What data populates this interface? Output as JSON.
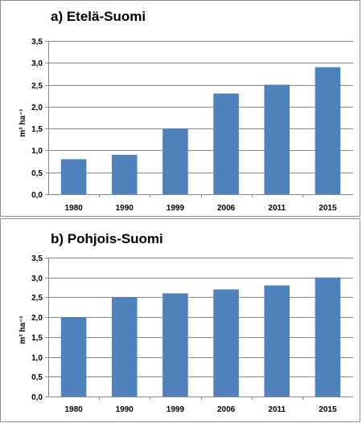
{
  "chart_data": [
    {
      "type": "bar",
      "title": "a) Etelä-Suomi",
      "ylabel": "m³ ha⁻¹",
      "categories": [
        "1980",
        "1990",
        "1999",
        "2006",
        "2011",
        "2015"
      ],
      "values": [
        0.8,
        0.9,
        1.5,
        2.3,
        2.5,
        2.9
      ],
      "ylim": [
        0,
        3.5
      ],
      "yticks": [
        "0,0",
        "0,5",
        "1,0",
        "1,5",
        "2,0",
        "2,5",
        "3,0",
        "3,5"
      ],
      "grid": true,
      "bar_color": "#4f81bd"
    },
    {
      "type": "bar",
      "title": "b) Pohjois-Suomi",
      "ylabel": "m³ ha⁻¹",
      "categories": [
        "1980",
        "1990",
        "1999",
        "2006",
        "2011",
        "2015"
      ],
      "values": [
        2.0,
        2.5,
        2.6,
        2.7,
        2.8,
        3.0
      ],
      "ylim": [
        0,
        3.5
      ],
      "yticks": [
        "0,0",
        "0,5",
        "1,0",
        "1,5",
        "2,0",
        "2,5",
        "3,0",
        "3,5"
      ],
      "grid": true,
      "bar_color": "#4f81bd"
    }
  ]
}
